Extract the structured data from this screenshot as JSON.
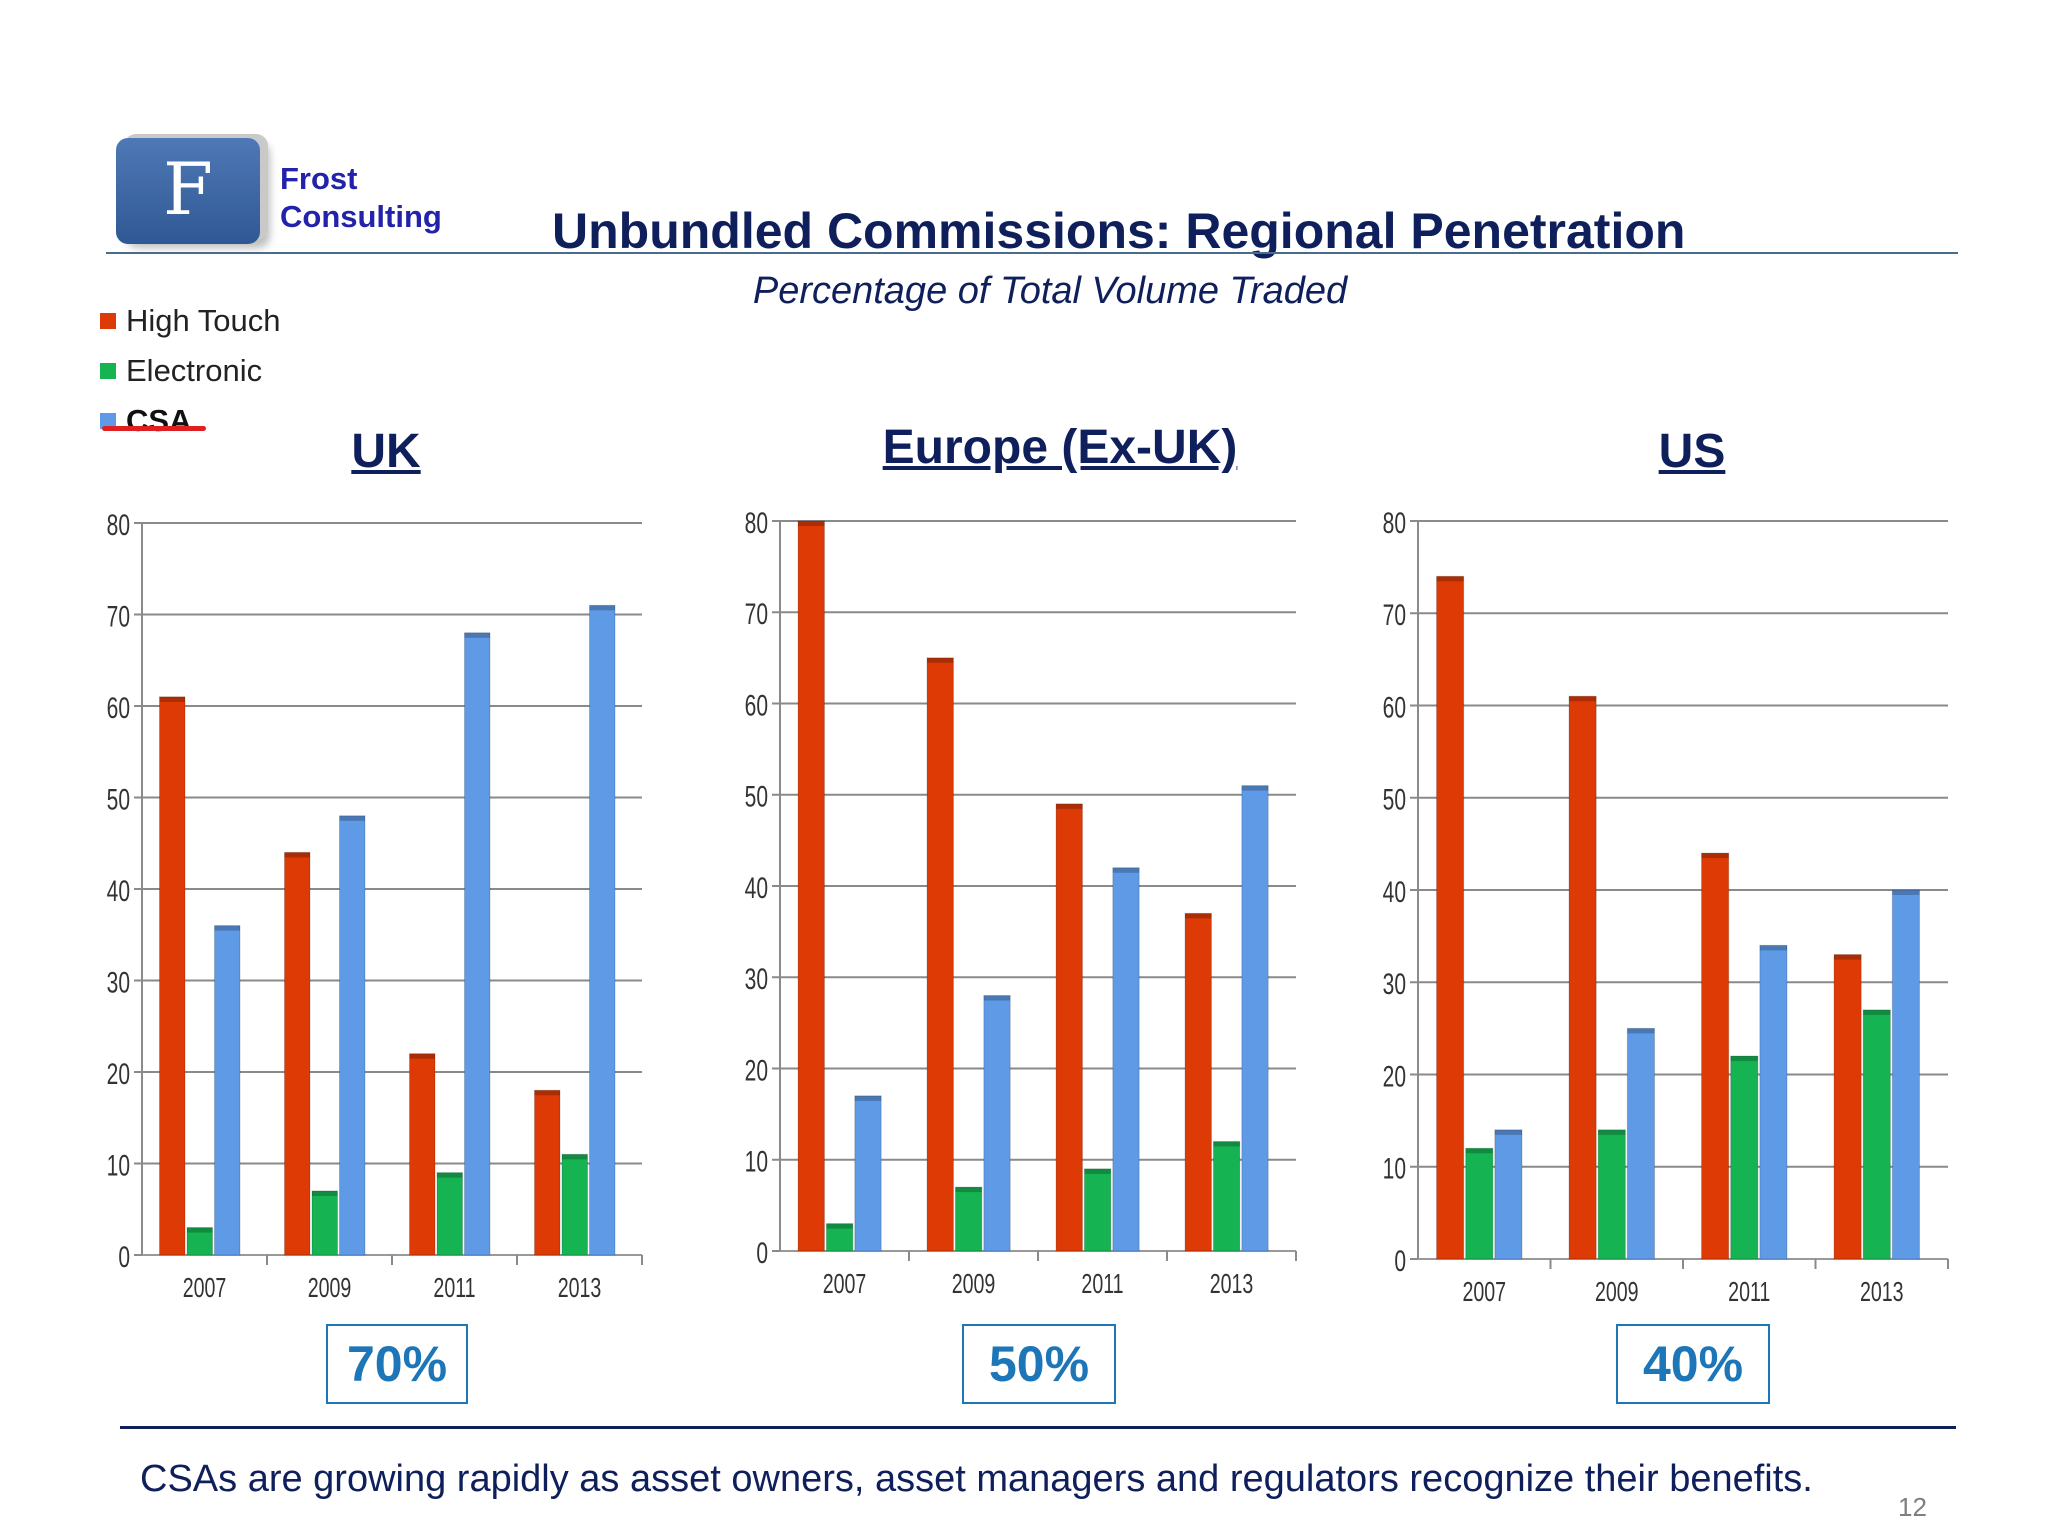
{
  "logo": {
    "letter": "F",
    "line1": "Frost",
    "line2": "Consulting"
  },
  "title": "Unbundled Commissions:  Regional Penetration",
  "subtitle": "Percentage of Total Volume Traded",
  "legend": [
    {
      "label": "High Touch",
      "color": "#dd3a06"
    },
    {
      "label": "Electronic",
      "color": "#16b353"
    },
    {
      "label": "CSA",
      "color": "#5e9ae6"
    }
  ],
  "chart_data": [
    {
      "type": "bar",
      "title": "UK",
      "categories": [
        "2007",
        "2009",
        "2011",
        "2013"
      ],
      "series": [
        {
          "name": "High Touch",
          "values": [
            61,
            44,
            22,
            18
          ]
        },
        {
          "name": "Electronic",
          "values": [
            3,
            7,
            9,
            11
          ]
        },
        {
          "name": "CSA",
          "values": [
            36,
            48,
            68,
            71
          ]
        }
      ],
      "ylim": [
        0,
        80
      ],
      "yticks": [
        0,
        10,
        20,
        30,
        40,
        50,
        60,
        70,
        80
      ],
      "grid": true,
      "callout": "70%"
    },
    {
      "type": "bar",
      "title": "Europe (Ex-UK)",
      "categories": [
        "2007",
        "2009",
        "2011",
        "2013"
      ],
      "series": [
        {
          "name": "High Touch",
          "values": [
            80,
            65,
            49,
            37
          ]
        },
        {
          "name": "Electronic",
          "values": [
            3,
            7,
            9,
            12
          ]
        },
        {
          "name": "CSA",
          "values": [
            17,
            28,
            42,
            51
          ]
        }
      ],
      "ylim": [
        0,
        80
      ],
      "yticks": [
        0,
        10,
        20,
        30,
        40,
        50,
        60,
        70,
        80
      ],
      "grid": true,
      "callout": "50%"
    },
    {
      "type": "bar",
      "title": "US",
      "categories": [
        "2007",
        "2009",
        "2011",
        "2013"
      ],
      "series": [
        {
          "name": "High Touch",
          "values": [
            74,
            61,
            44,
            33
          ]
        },
        {
          "name": "Electronic",
          "values": [
            12,
            14,
            22,
            27
          ]
        },
        {
          "name": "CSA",
          "values": [
            14,
            25,
            34,
            40
          ]
        }
      ],
      "ylim": [
        0,
        80
      ],
      "yticks": [
        0,
        10,
        20,
        30,
        40,
        50,
        60,
        70,
        80
      ],
      "grid": true,
      "callout": "40%"
    }
  ],
  "footer": "CSAs are growing rapidly as asset owners, asset managers and regulators recognize their benefits.",
  "page_number": "12"
}
